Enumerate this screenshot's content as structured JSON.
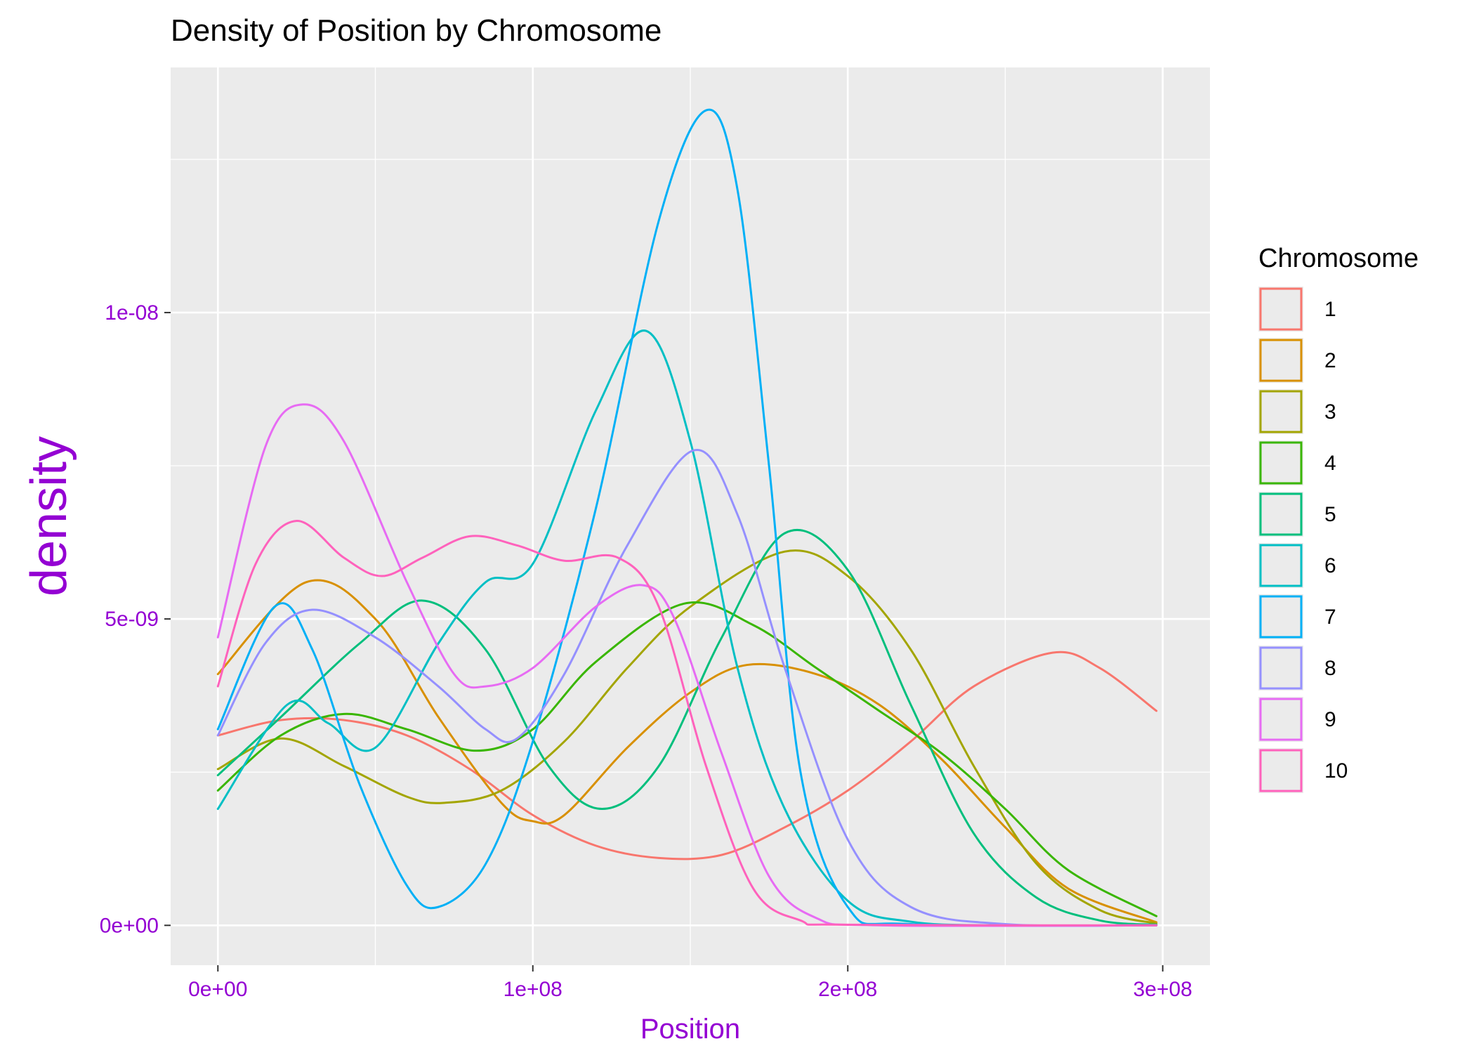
{
  "chart_data": {
    "type": "line",
    "title": "Density of Position by Chromosome",
    "xlabel": "Position",
    "ylabel": "density",
    "xlim": [
      -15000000,
      315000000
    ],
    "ylim": [
      -6.5e-10,
      1.4e-08
    ],
    "x_ticks": [
      0,
      100000000,
      200000000,
      300000000
    ],
    "x_tick_labels": [
      "0e+00",
      "1e+08",
      "2e+08",
      "3e+08"
    ],
    "y_ticks": [
      0,
      5e-09,
      1e-08
    ],
    "y_tick_labels": [
      "0e+00",
      "5e-09",
      "1e-08"
    ],
    "grid": true,
    "legend_title": "Chromosome",
    "legend_position": "right",
    "axis_text_color": "#9400D3",
    "panel_background": "#EBEBEB",
    "series": [
      {
        "name": "1",
        "color": "#F8766D",
        "x": [
          0,
          20000000,
          40000000,
          60000000,
          80000000,
          100000000,
          120000000,
          140000000,
          160000000,
          180000000,
          200000000,
          220000000,
          240000000,
          265000000,
          280000000,
          298000000
        ],
        "y": [
          3.1e-09,
          3.35e-09,
          3.35e-09,
          3.1e-09,
          2.55e-09,
          1.8e-09,
          1.3e-09,
          1.1e-09,
          1.15e-09,
          1.6e-09,
          2.2e-09,
          3e-09,
          3.9e-09,
          4.45e-09,
          4.2e-09,
          3.5e-09
        ]
      },
      {
        "name": "2",
        "color": "#D89000",
        "x": [
          0,
          28000000,
          50000000,
          70000000,
          90000000,
          100000000,
          110000000,
          130000000,
          150000000,
          168000000,
          190000000,
          210000000,
          230000000,
          250000000,
          270000000,
          298000000
        ],
        "y": [
          4.1e-09,
          5.6e-09,
          5e-09,
          3.4e-09,
          2e-09,
          1.7e-09,
          1.8e-09,
          2.9e-09,
          3.8e-09,
          4.25e-09,
          4.1e-09,
          3.6e-09,
          2.7e-09,
          1.6e-09,
          6e-10,
          5e-11
        ]
      },
      {
        "name": "3",
        "color": "#A3A500",
        "x": [
          0,
          20000000,
          40000000,
          60000000,
          72000000,
          90000000,
          110000000,
          130000000,
          150000000,
          180000000,
          200000000,
          220000000,
          240000000,
          260000000,
          280000000,
          298000000
        ],
        "y": [
          2.55e-09,
          3.05e-09,
          2.6e-09,
          2.1e-09,
          2e-09,
          2.2e-09,
          3e-09,
          4.2e-09,
          5.2e-09,
          6.1e-09,
          5.7e-09,
          4.5e-09,
          2.6e-09,
          1e-09,
          2.5e-10,
          3e-11
        ]
      },
      {
        "name": "4",
        "color": "#39B600",
        "x": [
          0,
          20000000,
          40000000,
          60000000,
          82000000,
          100000000,
          120000000,
          148000000,
          170000000,
          190000000,
          210000000,
          230000000,
          250000000,
          270000000,
          298000000
        ],
        "y": [
          2.2e-09,
          3.1e-09,
          3.45e-09,
          3.2e-09,
          2.85e-09,
          3.2e-09,
          4.3e-09,
          5.25e-09,
          4.9e-09,
          4.2e-09,
          3.5e-09,
          2.8e-09,
          1.9e-09,
          9e-10,
          1.5e-10
        ]
      },
      {
        "name": "5",
        "color": "#00BF7D",
        "x": [
          0,
          20000000,
          45000000,
          65000000,
          85000000,
          105000000,
          122000000,
          140000000,
          160000000,
          180000000,
          200000000,
          220000000,
          240000000,
          260000000,
          280000000,
          298000000
        ],
        "y": [
          2.45e-09,
          3.4e-09,
          4.6e-09,
          5.3e-09,
          4.5e-09,
          2.6e-09,
          1.9e-09,
          2.6e-09,
          4.7e-09,
          6.4e-09,
          5.8e-09,
          3.6e-09,
          1.5e-09,
          4.5e-10,
          8e-11,
          1e-11
        ]
      },
      {
        "name": "6",
        "color": "#00BFC4",
        "x": [
          0,
          22000000,
          35000000,
          50000000,
          70000000,
          85000000,
          100000000,
          120000000,
          136000000,
          150000000,
          165000000,
          180000000,
          200000000,
          220000000,
          250000000,
          298000000
        ],
        "y": [
          1.9e-09,
          3.6e-09,
          3.3e-09,
          2.9e-09,
          4.6e-09,
          5.6e-09,
          5.9e-09,
          8.4e-09,
          9.7e-09,
          7.9e-09,
          4.2e-09,
          1.9e-09,
          4e-10,
          6e-11,
          0.0,
          0.0
        ]
      },
      {
        "name": "7",
        "color": "#00B0F6",
        "x": [
          0,
          18000000,
          30000000,
          45000000,
          60000000,
          70000000,
          85000000,
          100000000,
          120000000,
          140000000,
          155000000,
          165000000,
          175000000,
          185000000,
          200000000,
          220000000,
          298000000
        ],
        "y": [
          3.2e-09,
          5.2e-09,
          4.5e-09,
          2.3e-09,
          6.5e-10,
          3e-10,
          1e-09,
          3e-09,
          6.8e-09,
          1.15e-08,
          1.33e-08,
          1.2e-08,
          7.5e-09,
          2.5e-09,
          3e-10,
          2e-11,
          0.0
        ]
      },
      {
        "name": "8",
        "color": "#9590FF",
        "x": [
          0,
          15000000,
          30000000,
          50000000,
          70000000,
          85000000,
          95000000,
          110000000,
          130000000,
          151000000,
          165000000,
          180000000,
          200000000,
          220000000,
          250000000,
          298000000
        ],
        "y": [
          3.1e-09,
          4.6e-09,
          5.15e-09,
          4.7e-09,
          3.9e-09,
          3.2e-09,
          3.05e-09,
          4.1e-09,
          6.2e-09,
          7.75e-09,
          6.7e-09,
          4.2e-09,
          1.4e-09,
          3e-10,
          2e-11,
          0.0
        ]
      },
      {
        "name": "9",
        "color": "#E76BF3",
        "x": [
          0,
          15000000,
          27000000,
          40000000,
          60000000,
          75000000,
          85000000,
          100000000,
          120000000,
          135000000,
          145000000,
          160000000,
          175000000,
          190000000,
          210000000,
          298000000
        ],
        "y": [
          4.7e-09,
          7.8e-09,
          8.5e-09,
          7.9e-09,
          5.6e-09,
          4.1e-09,
          3.9e-09,
          4.2e-09,
          5.2e-09,
          5.55e-09,
          5e-09,
          2.8e-09,
          8e-10,
          1.2e-10,
          0.0,
          0.0
        ]
      },
      {
        "name": "10",
        "color": "#FF62BC",
        "x": [
          0,
          12000000,
          25000000,
          40000000,
          52000000,
          65000000,
          80000000,
          95000000,
          110000000,
          127000000,
          140000000,
          155000000,
          170000000,
          185000000,
          200000000,
          298000000
        ],
        "y": [
          3.9e-09,
          5.9e-09,
          6.6e-09,
          6e-09,
          5.7e-09,
          6e-09,
          6.35e-09,
          6.2e-09,
          5.95e-09,
          6e-09,
          5.2e-09,
          2.6e-09,
          6e-10,
          8e-11,
          1e-11,
          0.0
        ]
      }
    ]
  }
}
